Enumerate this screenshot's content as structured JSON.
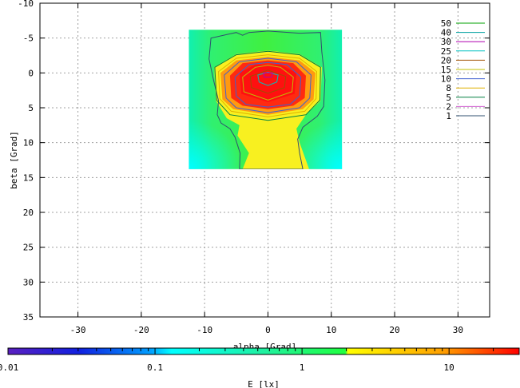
{
  "chart_data": {
    "type": "heatmap",
    "title": "",
    "xlabel": "alpha [Grad]",
    "ylabel": "beta [Grad]",
    "xlim": [
      -36,
      35
    ],
    "ylim": [
      -10,
      35
    ],
    "y_inverted": true,
    "grid": true,
    "x_ticks": [
      -30,
      -20,
      -10,
      0,
      10,
      20,
      30
    ],
    "y_ticks": [
      -10,
      -5,
      0,
      5,
      10,
      15,
      20,
      25,
      30,
      35
    ],
    "map_extent": {
      "x": [
        -12.5,
        11.7
      ],
      "y": [
        -6.2,
        13.8
      ]
    },
    "contour_legend": {
      "placement": "top-right",
      "entries": [
        {
          "label": "50",
          "color": "#00a000"
        },
        {
          "label": "40",
          "color": "#00a0a0"
        },
        {
          "label": "30",
          "color": "#b000b0"
        },
        {
          "label": "25",
          "color": "#00c0c0"
        },
        {
          "label": "20",
          "color": "#a05000"
        },
        {
          "label": "15",
          "color": "#c0c000"
        },
        {
          "label": "10",
          "color": "#4060d0"
        },
        {
          "label": "8",
          "color": "#e0b000"
        },
        {
          "label": "5",
          "color": "#008040"
        },
        {
          "label": "2",
          "color": "#d060d0"
        },
        {
          "label": "1",
          "color": "#305070"
        }
      ]
    },
    "colorbar": {
      "label": "E [lx]",
      "scale": "log",
      "range": [
        0.01,
        30
      ],
      "tick_labels": [
        "0.01",
        "0.1",
        "1",
        "10"
      ],
      "tick_values": [
        0.01,
        0.1,
        1,
        10
      ]
    }
  }
}
